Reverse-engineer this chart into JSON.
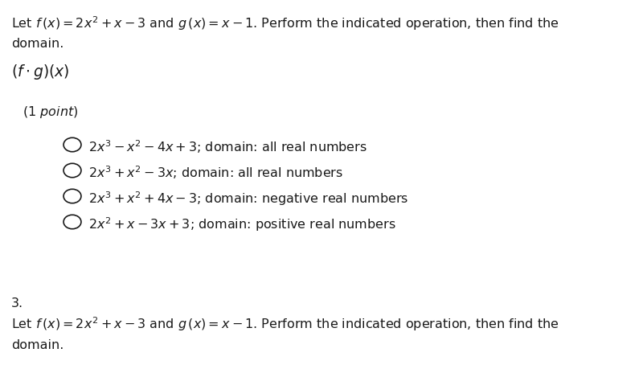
{
  "background_color": "#ffffff",
  "figsize": [
    8.0,
    4.59
  ],
  "dpi": 100,
  "header_line1": "Let $f\\,(x)=2x^2+x-3$ and $g\\,(x)=x-1$. Perform the indicated operation, then find the",
  "header_line2": "domain.",
  "operation_label": "$(f\\cdot g)(x)$",
  "point_label": "$(1\\ point)$",
  "choices": [
    "$2x^3-x^2-4x+3$; domain: all real numbers",
    "$2x^3+x^2-3x$; domain: all real numbers",
    "$2x^3+x^2+4x-3$; domain: negative real numbers",
    "$2x^2+x-3x+3$; domain: positive real numbers"
  ],
  "footer_line1": "3.",
  "footer_line2": "Let $f\\,(x)=2x^2+x-3$ and $g\\,(x)=x-1$. Perform the indicated operation, then find the",
  "footer_line3": "domain.",
  "text_color": "#1a1a1a",
  "font_size_header": 11.5,
  "font_size_operation": 13.5,
  "font_size_point": 11.5,
  "font_size_choice": 11.5,
  "font_size_footer": 11.5
}
